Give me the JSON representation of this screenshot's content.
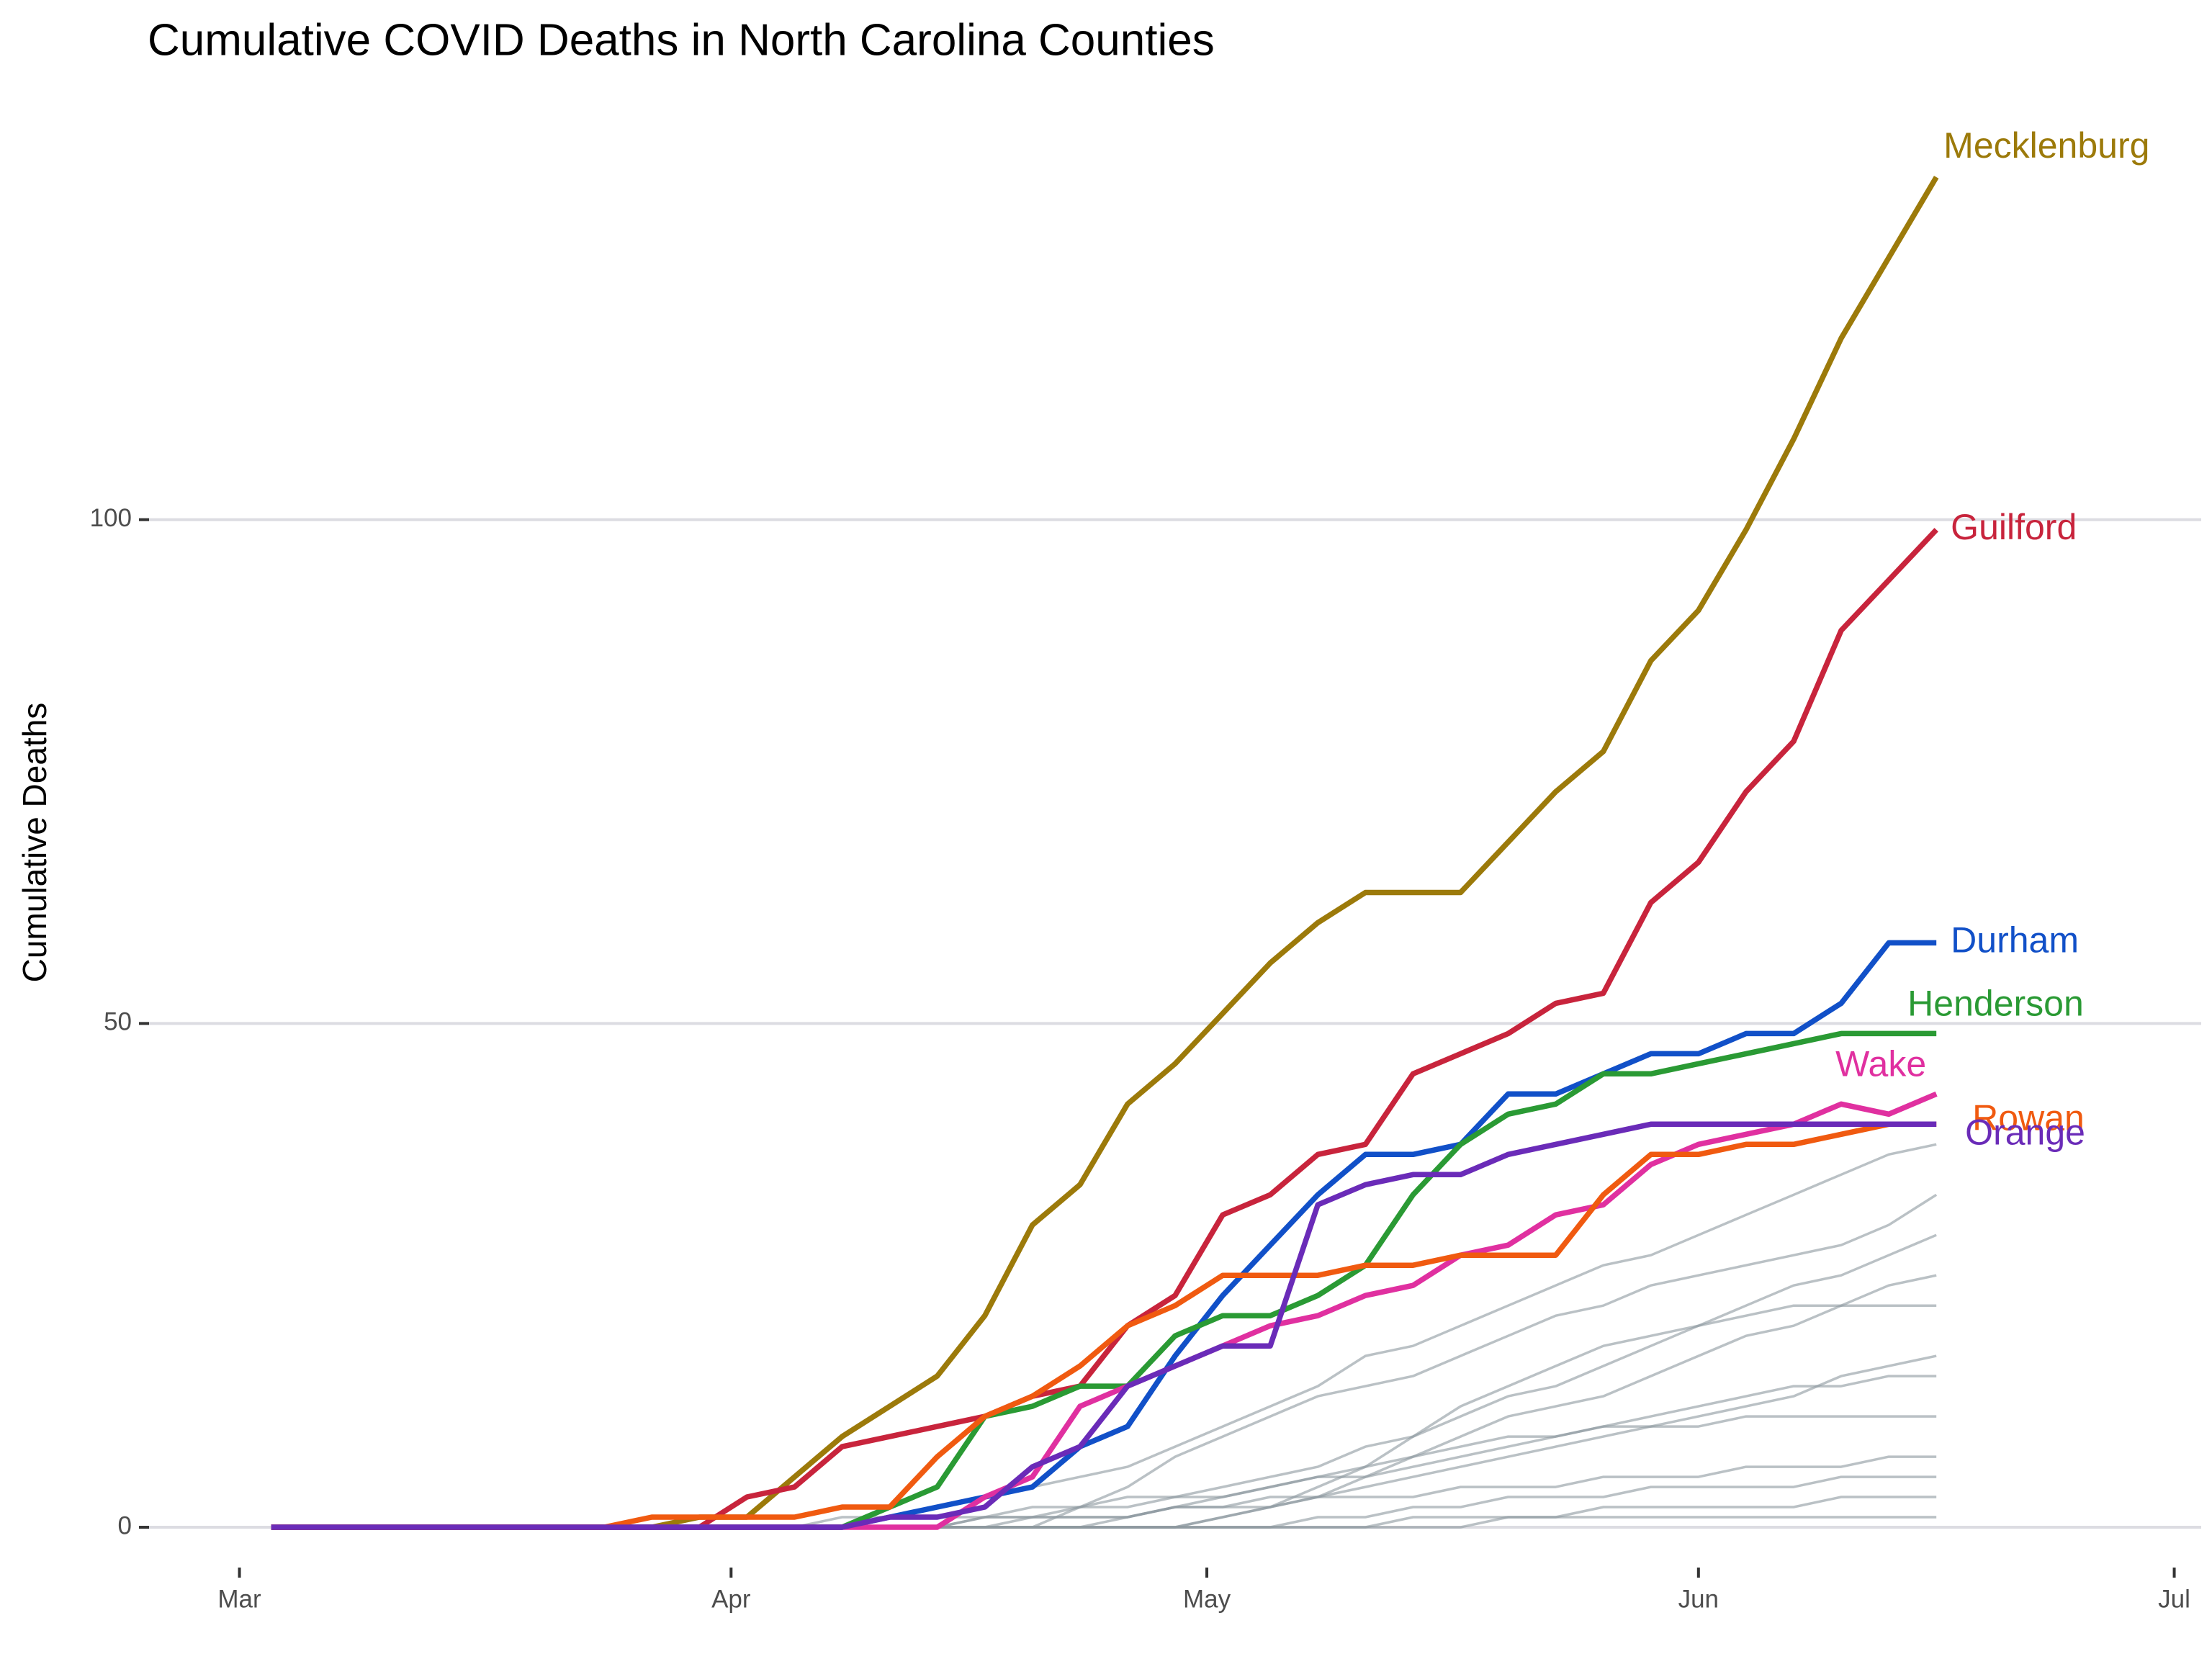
{
  "chart_data": {
    "type": "line",
    "title": "Cumulative COVID Deaths in North Carolina Counties",
    "y_label": "Cumulative Deaths",
    "x": [
      2,
      5,
      8,
      11,
      14,
      17,
      20,
      23,
      26,
      29,
      32,
      35,
      38,
      41,
      44,
      47,
      50,
      53,
      56,
      59,
      62,
      65,
      68,
      71,
      74,
      77,
      80,
      83,
      86,
      89,
      92,
      95,
      98,
      101,
      104,
      107
    ],
    "xlim": [
      -5.7,
      123.7
    ],
    "xticks": [
      {
        "value": 0,
        "label": "Mar"
      },
      {
        "value": 31,
        "label": "Apr"
      },
      {
        "value": 61,
        "label": "May"
      },
      {
        "value": 92,
        "label": "Jun"
      },
      {
        "value": 122,
        "label": "Jul"
      }
    ],
    "ylim": [
      -4,
      141
    ],
    "yticks": [
      0,
      50,
      100
    ],
    "grid": true,
    "series": [
      {
        "name": "Mecklenburg",
        "color": "#9c7a0a",
        "values": [
          0,
          0,
          0,
          0,
          0,
          0,
          0,
          0,
          0,
          1,
          1,
          5,
          9,
          12,
          15,
          21,
          30,
          34,
          42,
          46,
          51,
          56,
          60,
          63,
          63,
          63,
          68,
          73,
          77,
          86,
          91,
          99,
          108,
          118,
          126,
          134
        ]
      },
      {
        "name": "Guilford",
        "color": "#c8243c",
        "values": [
          0,
          0,
          0,
          0,
          0,
          0,
          0,
          0,
          0,
          0,
          3,
          4,
          8,
          9,
          10,
          11,
          13,
          14,
          20,
          23,
          31,
          33,
          37,
          38,
          45,
          47,
          49,
          52,
          53,
          62,
          66,
          73,
          78,
          89,
          94,
          99
        ]
      },
      {
        "name": "Durham",
        "color": "#1150c8",
        "values": [
          0,
          0,
          0,
          0,
          0,
          0,
          0,
          0,
          0,
          0,
          0,
          0,
          0,
          1,
          2,
          3,
          4,
          8,
          10,
          17,
          23,
          28,
          33,
          37,
          37,
          38,
          43,
          43,
          45,
          47,
          47,
          49,
          49,
          52,
          58,
          58
        ]
      },
      {
        "name": "Henderson",
        "color": "#2a9a34",
        "values": [
          0,
          0,
          0,
          0,
          0,
          0,
          0,
          0,
          0,
          0,
          0,
          0,
          0,
          2,
          4,
          11,
          12,
          14,
          14,
          19,
          21,
          21,
          23,
          26,
          33,
          38,
          41,
          42,
          45,
          45,
          46,
          47,
          48,
          49,
          49,
          49
        ]
      },
      {
        "name": "Wake",
        "color": "#e030a0",
        "values": [
          0,
          0,
          0,
          0,
          0,
          0,
          0,
          0,
          0,
          0,
          0,
          0,
          0,
          0,
          0,
          3,
          5,
          12,
          14,
          16,
          18,
          20,
          21,
          23,
          24,
          27,
          28,
          31,
          32,
          36,
          38,
          39,
          40,
          42,
          41,
          43
        ]
      },
      {
        "name": "Rowan",
        "color": "#f05a10",
        "values": [
          0,
          0,
          0,
          0,
          0,
          0,
          0,
          0,
          1,
          1,
          1,
          1,
          2,
          2,
          7,
          11,
          13,
          16,
          20,
          22,
          25,
          25,
          25,
          26,
          26,
          27,
          27,
          27,
          33,
          37,
          37,
          38,
          38,
          39,
          40,
          40
        ]
      },
      {
        "name": "Orange",
        "color": "#6a2bb8",
        "values": [
          0,
          0,
          0,
          0,
          0,
          0,
          0,
          0,
          0,
          0,
          0,
          0,
          0,
          1,
          1,
          2,
          6,
          8,
          14,
          16,
          18,
          18,
          32,
          34,
          35,
          35,
          37,
          38,
          39,
          40,
          40,
          40,
          40,
          40,
          40,
          40
        ]
      }
    ],
    "other_color": "#8c979f",
    "other_series": [
      {
        "values": [
          0,
          0,
          0,
          0,
          0,
          0,
          0,
          0,
          0,
          0,
          0,
          0,
          1,
          1,
          2,
          3,
          4,
          5,
          6,
          8,
          10,
          12,
          14,
          17,
          18,
          20,
          22,
          24,
          26,
          27,
          29,
          31,
          33,
          35,
          37,
          38
        ]
      },
      {
        "values": [
          0,
          0,
          0,
          0,
          0,
          0,
          0,
          0,
          0,
          0,
          0,
          0,
          0,
          0,
          0,
          1,
          1,
          2,
          2,
          3,
          4,
          5,
          6,
          8,
          9,
          11,
          13,
          14,
          16,
          18,
          20,
          22,
          24,
          25,
          27,
          29
        ]
      },
      {
        "values": [
          0,
          0,
          0,
          0,
          0,
          0,
          0,
          0,
          0,
          0,
          0,
          0,
          0,
          0,
          0,
          0,
          1,
          1,
          1,
          2,
          3,
          4,
          5,
          5,
          6,
          7,
          8,
          9,
          10,
          11,
          12,
          13,
          14,
          14,
          15,
          15
        ]
      },
      {
        "values": [
          0,
          0,
          0,
          0,
          0,
          0,
          0,
          0,
          0,
          0,
          0,
          0,
          0,
          0,
          0,
          0,
          0,
          0,
          1,
          2,
          2,
          3,
          3,
          4,
          5,
          6,
          7,
          8,
          9,
          10,
          11,
          12,
          13,
          15,
          16,
          17
        ]
      },
      {
        "values": [
          0,
          0,
          0,
          0,
          0,
          0,
          0,
          0,
          0,
          0,
          0,
          0,
          0,
          0,
          0,
          1,
          1,
          1,
          1,
          2,
          2,
          2,
          3,
          3,
          3,
          4,
          4,
          4,
          5,
          5,
          5,
          6,
          6,
          6,
          7,
          7
        ]
      },
      {
        "values": [
          0,
          0,
          0,
          0,
          0,
          0,
          0,
          0,
          0,
          0,
          0,
          0,
          0,
          0,
          0,
          0,
          0,
          0,
          0,
          0,
          1,
          2,
          4,
          6,
          9,
          12,
          14,
          16,
          18,
          19,
          20,
          21,
          22,
          22,
          22,
          22
        ]
      },
      {
        "values": [
          0,
          0,
          0,
          0,
          0,
          0,
          0,
          0,
          0,
          0,
          0,
          0,
          0,
          0,
          0,
          0,
          0,
          0,
          0,
          0,
          0,
          0,
          1,
          1,
          2,
          2,
          3,
          3,
          3,
          4,
          4,
          4,
          4,
          5,
          5,
          5
        ]
      },
      {
        "values": [
          0,
          0,
          0,
          0,
          0,
          0,
          0,
          0,
          0,
          0,
          0,
          0,
          0,
          0,
          0,
          0,
          0,
          2,
          4,
          7,
          9,
          11,
          13,
          14,
          15,
          17,
          19,
          21,
          22,
          24,
          25,
          26,
          27,
          28,
          30,
          33
        ]
      },
      {
        "values": [
          0,
          0,
          0,
          0,
          0,
          0,
          0,
          0,
          0,
          0,
          0,
          0,
          0,
          0,
          0,
          0,
          0,
          0,
          0,
          0,
          0,
          0,
          0,
          0,
          1,
          1,
          1,
          1,
          2,
          2,
          2,
          2,
          2,
          3,
          3,
          3
        ]
      },
      {
        "values": [
          0,
          0,
          0,
          0,
          0,
          0,
          0,
          0,
          0,
          0,
          0,
          0,
          0,
          0,
          0,
          0,
          0,
          0,
          0,
          0,
          1,
          2,
          3,
          5,
          7,
          9,
          11,
          12,
          13,
          15,
          17,
          19,
          20,
          22,
          24,
          25
        ]
      },
      {
        "values": [
          0,
          0,
          0,
          0,
          0,
          0,
          0,
          0,
          0,
          0,
          0,
          0,
          0,
          0,
          0,
          0,
          0,
          0,
          0,
          0,
          0,
          0,
          0,
          0,
          0,
          0,
          1,
          1,
          1,
          1,
          1,
          1,
          1,
          1,
          1,
          1
        ]
      },
      {
        "values": [
          0,
          0,
          0,
          0,
          0,
          0,
          0,
          0,
          0,
          0,
          0,
          0,
          0,
          1,
          1,
          1,
          2,
          2,
          3,
          3,
          3,
          4,
          5,
          6,
          7,
          8,
          9,
          9,
          10,
          10,
          10,
          11,
          11,
          11,
          11,
          11
        ]
      }
    ]
  }
}
